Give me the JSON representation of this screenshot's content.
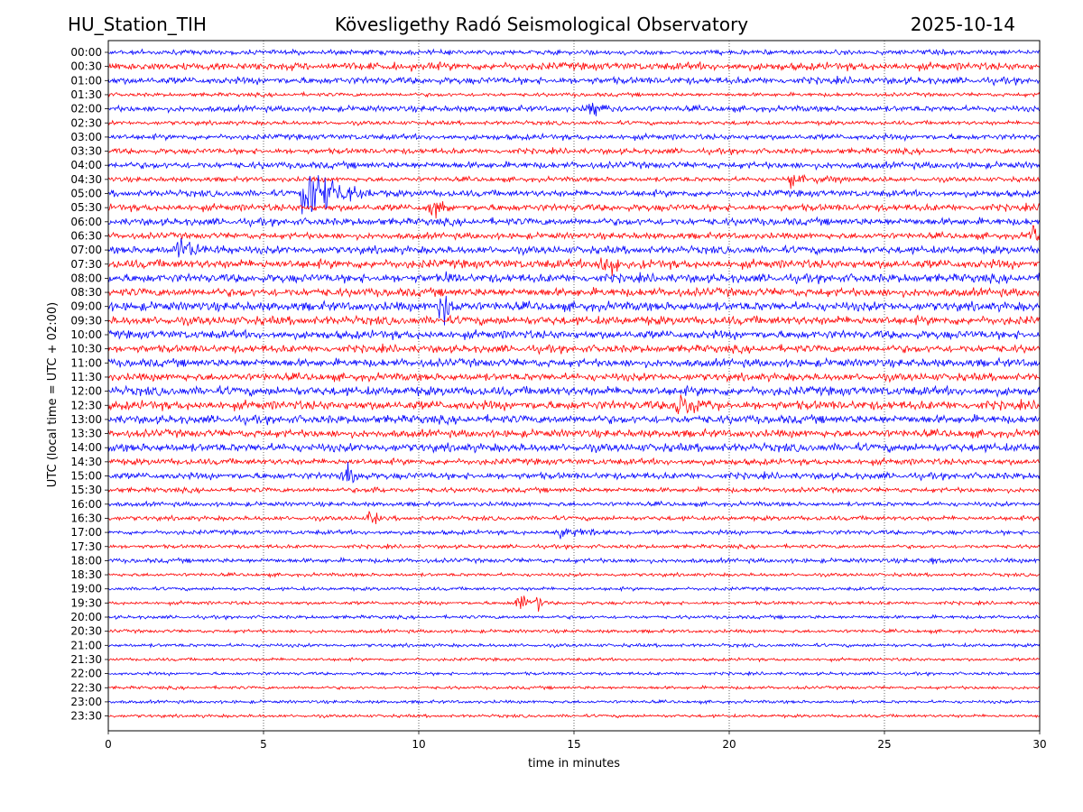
{
  "header": {
    "station": "HU_Station_TIH",
    "observatory": "Kövesligethy Radó Seismological Observatory",
    "date": "2025-10-14"
  },
  "chart_data": {
    "type": "helicorder",
    "title": "Kövesligethy Radó Seismological Observatory",
    "xlabel": "time in minutes",
    "ylabel": "UTC (local time = UTC + 02:00)",
    "xlim": [
      0,
      30
    ],
    "xticks": [
      "0",
      "5",
      "10",
      "15",
      "20",
      "25",
      "30"
    ],
    "grid": "vertical dotted at 5-minute ticks",
    "colors": {
      "even": "#0000ff",
      "odd": "#ff0000"
    },
    "rows": [
      "00:00",
      "00:30",
      "01:00",
      "01:30",
      "02:00",
      "02:30",
      "03:00",
      "03:30",
      "04:00",
      "04:30",
      "05:00",
      "05:30",
      "06:00",
      "06:30",
      "07:00",
      "07:30",
      "08:00",
      "08:30",
      "09:00",
      "09:30",
      "10:00",
      "10:30",
      "11:00",
      "11:30",
      "12:00",
      "12:30",
      "13:00",
      "13:30",
      "14:00",
      "14:30",
      "15:00",
      "15:30",
      "16:00",
      "16:30",
      "17:00",
      "17:30",
      "18:00",
      "18:30",
      "19:00",
      "19:30",
      "20:00",
      "20:30",
      "21:00",
      "21:30",
      "22:00",
      "22:30",
      "23:00",
      "23:30"
    ],
    "noise_levels": [
      1.4,
      2.2,
      2.0,
      1.1,
      1.7,
      1.2,
      1.6,
      1.6,
      1.9,
      1.4,
      1.9,
      2.0,
      2.1,
      1.8,
      2.2,
      2.5,
      2.5,
      2.4,
      2.6,
      2.5,
      2.4,
      2.2,
      2.3,
      2.2,
      2.6,
      2.6,
      2.4,
      2.2,
      2.4,
      1.8,
      1.9,
      1.4,
      1.3,
      1.3,
      1.3,
      1.1,
      1.3,
      1.0,
      1.0,
      1.0,
      1.0,
      1.0,
      1.0,
      0.9,
      0.9,
      0.9,
      0.9,
      0.9
    ],
    "events": [
      {
        "row": "02:00",
        "minute": 15.6,
        "amplitude": 0.35,
        "duration": 1.5
      },
      {
        "row": "04:30",
        "minute": 22.0,
        "amplitude": 0.28,
        "duration": 3.5
      },
      {
        "row": "05:00",
        "minute": 6.4,
        "amplitude": 1.6,
        "duration": 2.5
      },
      {
        "row": "05:30",
        "minute": 10.5,
        "amplitude": 0.6,
        "duration": 0.6
      },
      {
        "row": "06:30",
        "minute": 29.8,
        "amplitude": 0.45,
        "duration": 0.5
      },
      {
        "row": "07:00",
        "minute": 2.3,
        "amplitude": 0.6,
        "duration": 1.8
      },
      {
        "row": "07:30",
        "minute": 15.9,
        "amplitude": 0.6,
        "duration": 1.6
      },
      {
        "row": "08:00",
        "minute": 10.9,
        "amplitude": 0.3,
        "duration": 0.4
      },
      {
        "row": "09:00",
        "minute": 10.8,
        "amplitude": 0.95,
        "duration": 0.6
      },
      {
        "row": "12:30",
        "minute": 18.3,
        "amplitude": 0.55,
        "duration": 1.8
      },
      {
        "row": "15:00",
        "minute": 7.7,
        "amplitude": 0.65,
        "duration": 0.6
      },
      {
        "row": "15:30",
        "minute": 8.6,
        "amplitude": 0.2,
        "duration": 0.4
      },
      {
        "row": "16:30",
        "minute": 8.5,
        "amplitude": 0.45,
        "duration": 0.6
      },
      {
        "row": "17:00",
        "minute": 14.5,
        "amplitude": 0.22,
        "duration": 3.0
      },
      {
        "row": "18:00",
        "minute": 26.5,
        "amplitude": 0.15,
        "duration": 2.0
      },
      {
        "row": "19:30",
        "minute": 13.3,
        "amplitude": 0.65,
        "duration": 0.4
      },
      {
        "row": "19:30",
        "minute": 13.8,
        "amplitude": 0.5,
        "duration": 0.4
      }
    ]
  }
}
